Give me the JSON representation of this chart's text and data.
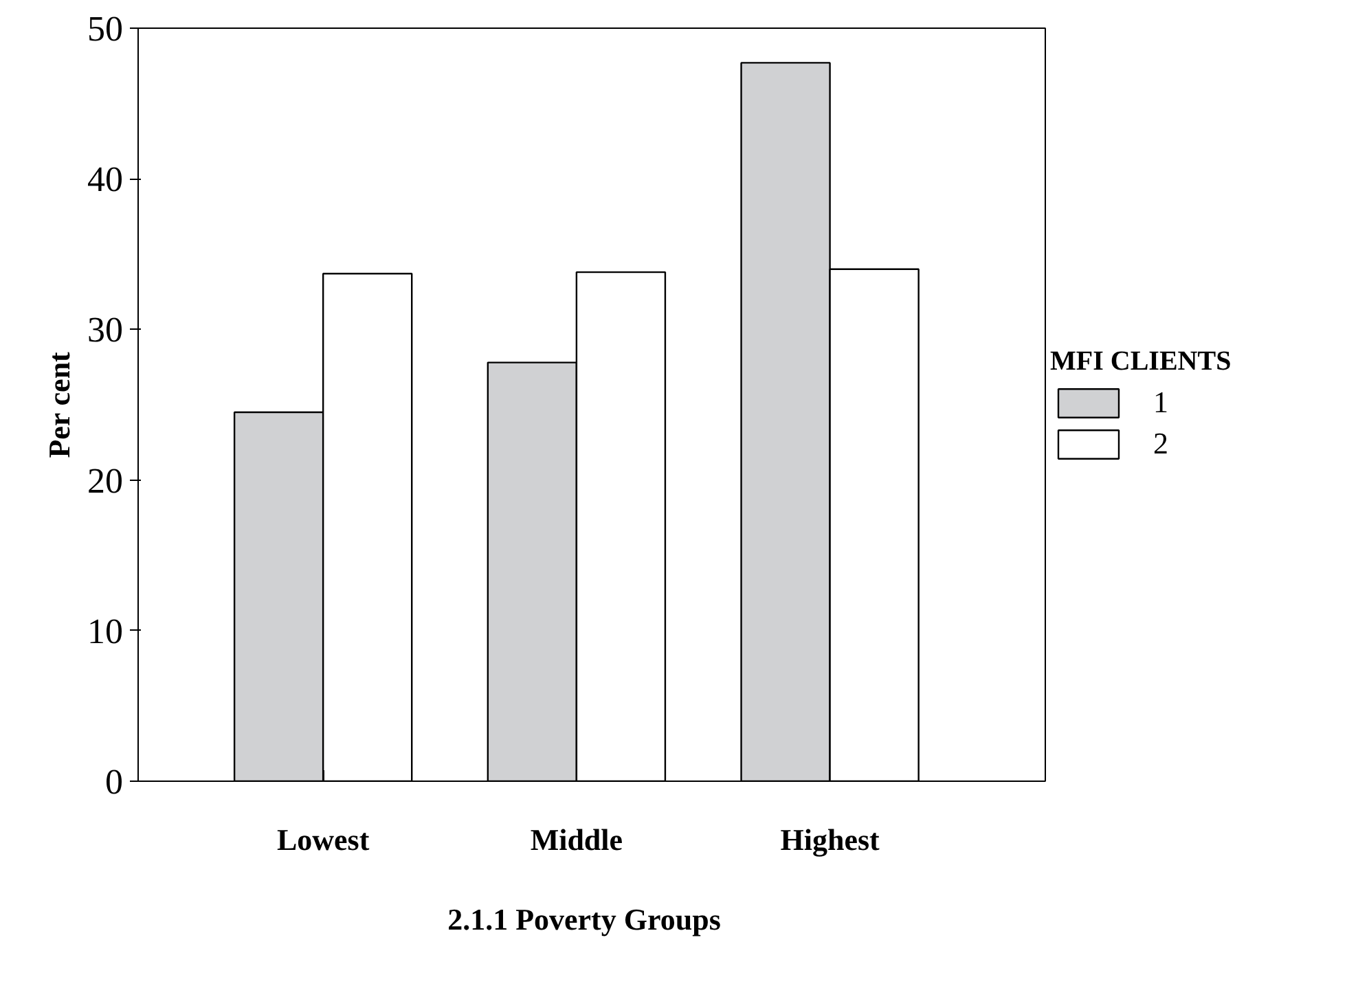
{
  "chart_data": {
    "type": "bar",
    "xlabel": "2.1.1   Poverty Groups",
    "ylabel": "Per cent",
    "legend_title": "MFI CLIENTS",
    "legend": "right",
    "categories": [
      "Lowest",
      "Middle",
      "Highest"
    ],
    "series": [
      {
        "name": "1",
        "color": "#d0d1d3",
        "values": [
          24.5,
          27.8,
          47.7
        ]
      },
      {
        "name": "2",
        "color": "#ffffff",
        "values": [
          33.7,
          33.8,
          34.0
        ]
      }
    ],
    "ylim": [
      0,
      50
    ],
    "yticks": [
      0,
      10,
      20,
      30,
      40,
      50
    ],
    "grid": false
  }
}
